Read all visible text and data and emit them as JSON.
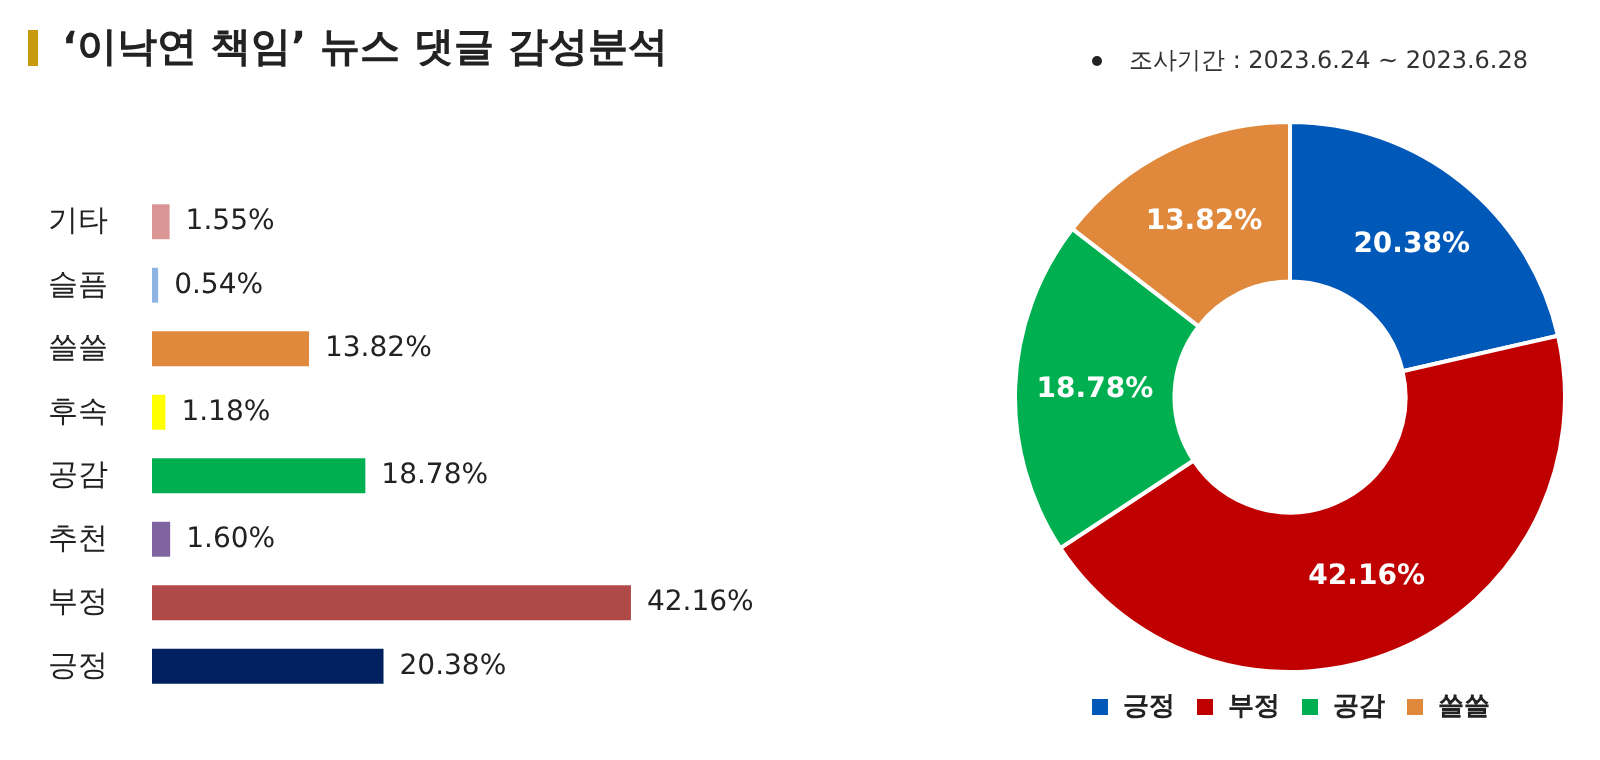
{
  "chart_data": [
    {
      "type": "bar",
      "orientation": "horizontal",
      "title": "‘이낙연 책임’ 뉴스 댓글 감성분석",
      "annotations": [
        "조사기간 : 2023.6.24 ~ 2023.6.28"
      ],
      "categories": [
        "기타",
        "슬픔",
        "쓸쓸",
        "후속",
        "공감",
        "추천",
        "부정",
        "긍정"
      ],
      "values": [
        1.55,
        0.54,
        13.82,
        1.18,
        18.78,
        1.6,
        42.16,
        20.38
      ],
      "colors": [
        "#d99694",
        "#8eb4e3",
        "#e0893c",
        "#ffff00",
        "#00b050",
        "#8064a2",
        "#b04a48",
        "#002060"
      ],
      "value_labels": [
        "1.55%",
        "0.54%",
        "13.82%",
        "1.18%",
        "18.78%",
        "1.60%",
        "42.16%",
        "20.38%"
      ],
      "tick_labels": "y",
      "grid": false,
      "legend": false
    },
    {
      "type": "donut",
      "categories": [
        "긍정",
        "부정",
        "공감",
        "쓸쓸"
      ],
      "values": [
        20.38,
        42.16,
        18.78,
        13.82
      ],
      "colors": [
        "#0058b8",
        "#c00000",
        "#00b050",
        "#e0893c"
      ],
      "value_labels": [
        "20.38%",
        "42.16%",
        "18.78%",
        "13.82%"
      ],
      "legend": "bottom"
    }
  ]
}
